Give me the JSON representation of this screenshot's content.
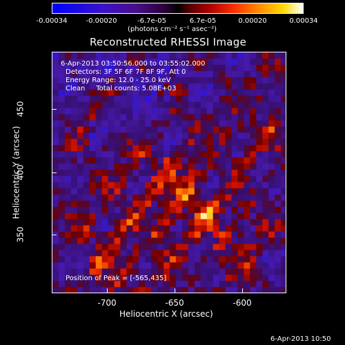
{
  "colorbar": {
    "ticks": [
      "-0.00034",
      "-0.00020",
      "-6.7e-05",
      "6.7e-05",
      "0.00020",
      "0.00034"
    ],
    "units": "(photons cm⁻² s⁻¹ asec⁻²)"
  },
  "title": "Reconstructed RHESSI Image",
  "info": {
    "time_range": "6-Apr-2013 03:50:56.000 to 03:55:02.000",
    "detectors": "Detectors: 3F 5F 6F 7F 8F 9F, Att 0",
    "energy": "Energy Range: 12.0 - 25.0 keV",
    "clean": "Clean     Total counts: 5.08E+03",
    "peak": "Position of Peak = [-565,435]"
  },
  "axes": {
    "xlabel": "Heliocentric X (arcsec)",
    "ylabel": "Heliocentric Y (arcsec)",
    "xticks": [
      "-700",
      "-650",
      "-600"
    ],
    "yticks": [
      "450",
      "400",
      "350"
    ]
  },
  "footer": {
    "date": "6-Apr-2013 10:50"
  }
}
